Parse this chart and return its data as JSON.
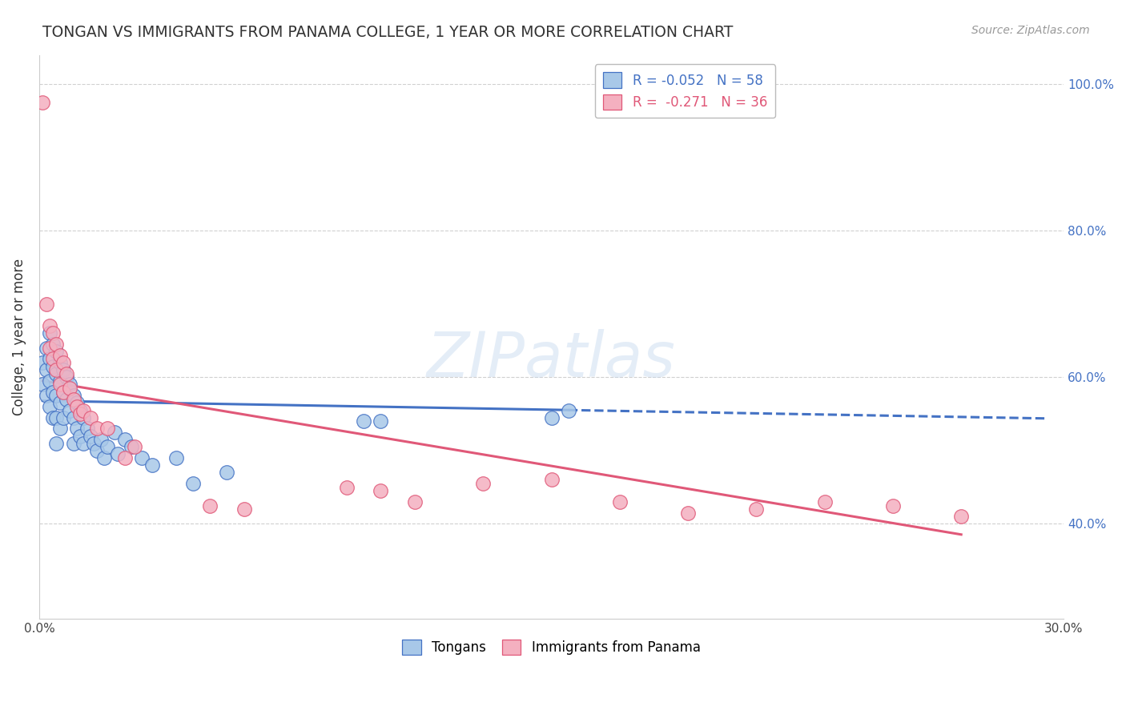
{
  "title": "TONGAN VS IMMIGRANTS FROM PANAMA COLLEGE, 1 YEAR OR MORE CORRELATION CHART",
  "source": "Source: ZipAtlas.com",
  "ylabel": "College, 1 year or more",
  "xlim": [
    0.0,
    0.3
  ],
  "ylim": [
    0.27,
    1.04
  ],
  "xticks": [
    0.0,
    0.05,
    0.1,
    0.15,
    0.2,
    0.25,
    0.3
  ],
  "xticklabels": [
    "0.0%",
    "",
    "",
    "",
    "",
    "",
    "30.0%"
  ],
  "yticks": [
    0.4,
    0.6,
    0.8,
    1.0
  ],
  "yticklabels": [
    "40.0%",
    "60.0%",
    "80.0%",
    "100.0%"
  ],
  "blue_face": "#a8c8e8",
  "blue_edge": "#4472c4",
  "pink_face": "#f4b0c0",
  "pink_edge": "#e05878",
  "blue_line": "#4472c4",
  "pink_line": "#e05878",
  "R1": "-0.052",
  "N1": "58",
  "R2": "-0.271",
  "N2": "36",
  "tongans_x": [
    0.001,
    0.001,
    0.002,
    0.002,
    0.002,
    0.003,
    0.003,
    0.003,
    0.003,
    0.004,
    0.004,
    0.004,
    0.004,
    0.005,
    0.005,
    0.005,
    0.005,
    0.005,
    0.006,
    0.006,
    0.006,
    0.006,
    0.007,
    0.007,
    0.007,
    0.008,
    0.008,
    0.009,
    0.009,
    0.01,
    0.01,
    0.01,
    0.011,
    0.011,
    0.012,
    0.012,
    0.013,
    0.013,
    0.014,
    0.015,
    0.016,
    0.017,
    0.018,
    0.019,
    0.02,
    0.022,
    0.023,
    0.025,
    0.027,
    0.03,
    0.033,
    0.04,
    0.045,
    0.055,
    0.095,
    0.1,
    0.15,
    0.155
  ],
  "tongans_y": [
    0.62,
    0.59,
    0.64,
    0.61,
    0.575,
    0.66,
    0.625,
    0.595,
    0.56,
    0.645,
    0.615,
    0.58,
    0.545,
    0.635,
    0.605,
    0.575,
    0.545,
    0.51,
    0.62,
    0.595,
    0.565,
    0.53,
    0.61,
    0.58,
    0.545,
    0.6,
    0.57,
    0.59,
    0.555,
    0.575,
    0.545,
    0.51,
    0.565,
    0.53,
    0.555,
    0.52,
    0.545,
    0.51,
    0.53,
    0.52,
    0.51,
    0.5,
    0.515,
    0.49,
    0.505,
    0.525,
    0.495,
    0.515,
    0.505,
    0.49,
    0.48,
    0.49,
    0.455,
    0.47,
    0.54,
    0.54,
    0.545,
    0.555
  ],
  "panama_x": [
    0.001,
    0.002,
    0.003,
    0.003,
    0.004,
    0.004,
    0.005,
    0.005,
    0.006,
    0.006,
    0.007,
    0.007,
    0.008,
    0.009,
    0.01,
    0.011,
    0.012,
    0.013,
    0.015,
    0.017,
    0.02,
    0.025,
    0.028,
    0.05,
    0.06,
    0.09,
    0.1,
    0.11,
    0.13,
    0.15,
    0.17,
    0.19,
    0.21,
    0.23,
    0.25,
    0.27
  ],
  "panama_y": [
    0.975,
    0.7,
    0.67,
    0.64,
    0.66,
    0.625,
    0.645,
    0.61,
    0.63,
    0.59,
    0.62,
    0.58,
    0.605,
    0.585,
    0.57,
    0.56,
    0.55,
    0.555,
    0.545,
    0.53,
    0.53,
    0.49,
    0.505,
    0.425,
    0.42,
    0.45,
    0.445,
    0.43,
    0.455,
    0.46,
    0.43,
    0.415,
    0.42,
    0.43,
    0.425,
    0.41
  ],
  "blue_line_start_x": 0.001,
  "blue_line_end_solid_x": 0.155,
  "blue_line_end_dash_x": 0.295,
  "blue_intercept": 0.568,
  "blue_slope": -0.082,
  "pink_intercept": 0.596,
  "pink_slope": -0.78
}
